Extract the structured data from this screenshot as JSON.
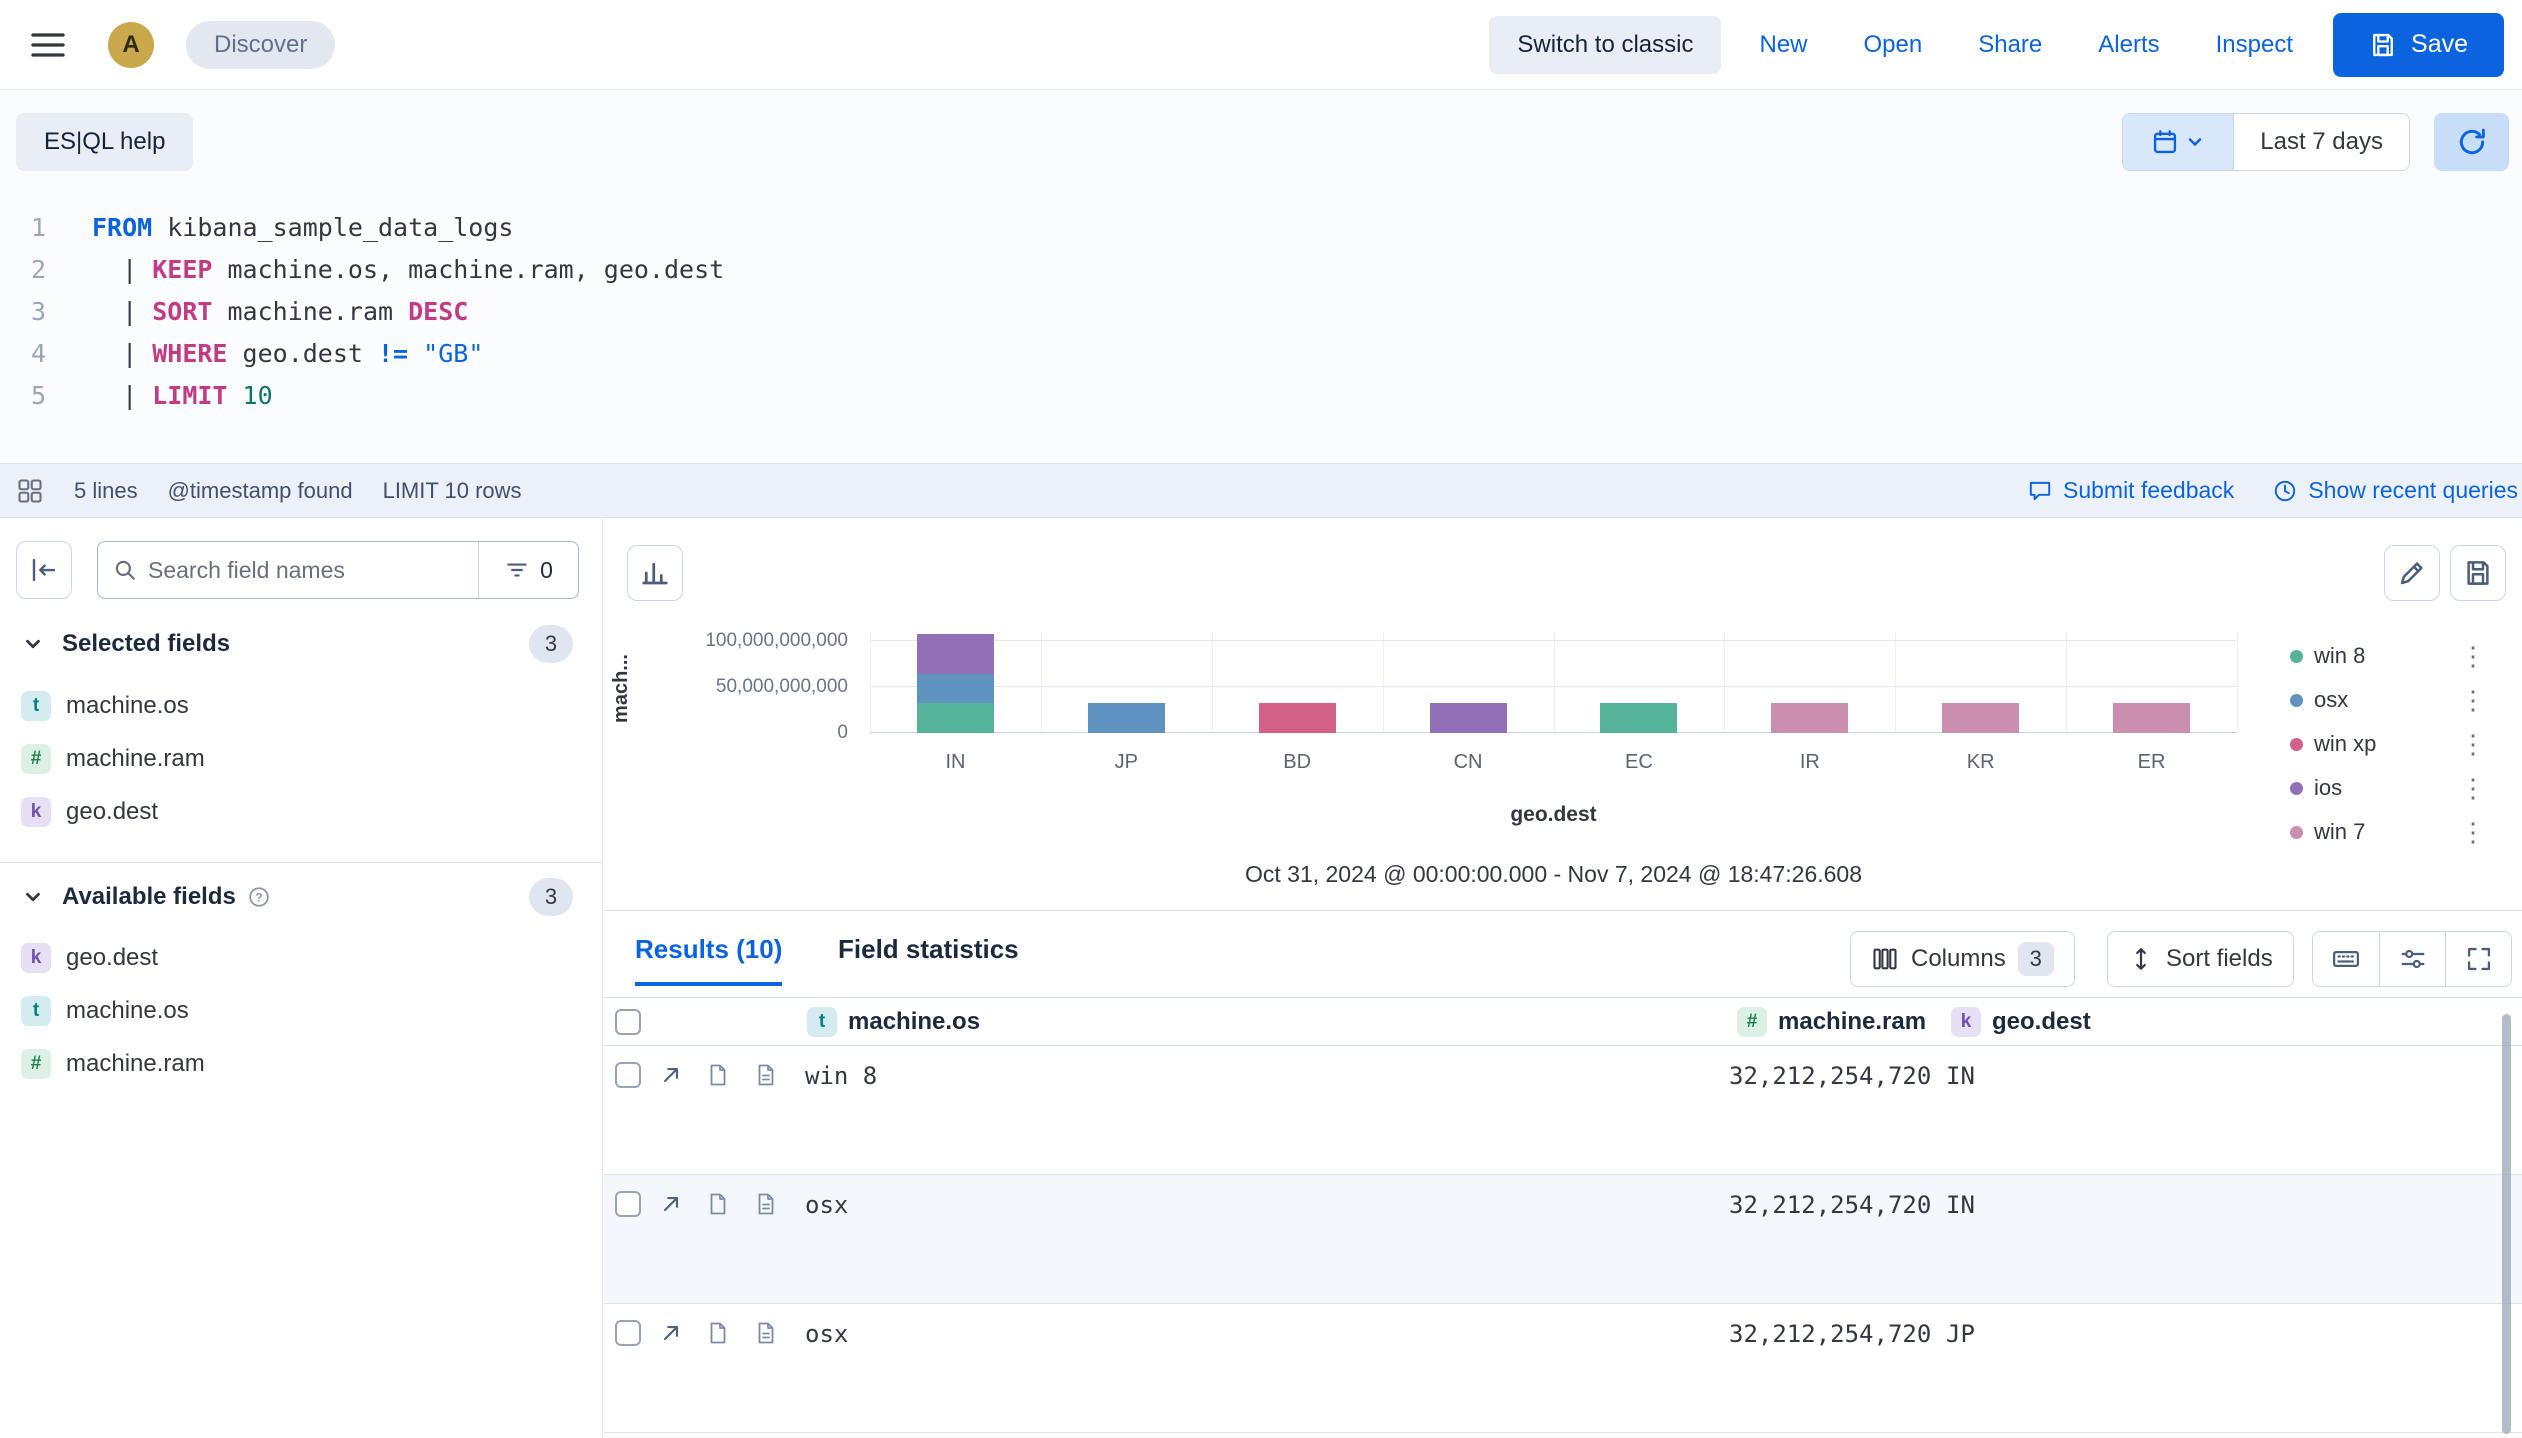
{
  "topbar": {
    "avatar_initial": "A",
    "breadcrumb": "Discover",
    "switch_classic": "Switch to classic",
    "links": [
      "New",
      "Open",
      "Share",
      "Alerts",
      "Inspect"
    ],
    "save_label": "Save"
  },
  "querybar": {
    "help_label": "ES|QL help",
    "time_range": "Last 7 days"
  },
  "editor": {
    "lines": [
      {
        "n": "1",
        "seg": [
          [
            "src",
            "FROM"
          ],
          [
            "plain",
            " kibana_sample_data_logs"
          ]
        ]
      },
      {
        "n": "2",
        "seg": [
          [
            "plain",
            "  | "
          ],
          [
            "proc",
            "KEEP"
          ],
          [
            "plain",
            " machine.os, machine.ram, geo.dest"
          ]
        ]
      },
      {
        "n": "3",
        "seg": [
          [
            "plain",
            "  | "
          ],
          [
            "proc",
            "SORT"
          ],
          [
            "plain",
            " machine.ram "
          ],
          [
            "proc",
            "DESC"
          ]
        ]
      },
      {
        "n": "4",
        "seg": [
          [
            "plain",
            "  | "
          ],
          [
            "proc",
            "WHERE"
          ],
          [
            "plain",
            " geo.dest "
          ],
          [
            "op",
            "!="
          ],
          [
            "plain",
            " "
          ],
          [
            "str",
            "\"GB\""
          ]
        ]
      },
      {
        "n": "5",
        "seg": [
          [
            "plain",
            "  | "
          ],
          [
            "proc",
            "LIMIT"
          ],
          [
            "plain",
            " "
          ],
          [
            "num",
            "10"
          ]
        ]
      }
    ]
  },
  "statusbar": {
    "lines_count": "5 lines",
    "timestamp_note": "@timestamp found",
    "limit_note": "LIMIT 10 rows",
    "feedback_link": "Submit feedback",
    "recent_queries_link": "Show recent queries"
  },
  "sidebar": {
    "search_placeholder": "Search field names",
    "filter_count": "0",
    "selected_fields": {
      "label": "Selected fields",
      "count": "3",
      "items": [
        {
          "type": "t",
          "glyph": "t",
          "name": "machine.os"
        },
        {
          "type": "n",
          "glyph": "#",
          "name": "machine.ram"
        },
        {
          "type": "k",
          "glyph": "k",
          "name": "geo.dest"
        }
      ]
    },
    "available_fields": {
      "label": "Available fields",
      "count": "3",
      "items": [
        {
          "type": "k",
          "glyph": "k",
          "name": "geo.dest"
        },
        {
          "type": "t",
          "glyph": "t",
          "name": "machine.os"
        },
        {
          "type": "n",
          "glyph": "#",
          "name": "machine.ram"
        }
      ]
    }
  },
  "chart_data": {
    "type": "bar",
    "stacked": true,
    "categories": [
      "IN",
      "JP",
      "BD",
      "CN",
      "EC",
      "IR",
      "KR",
      "ER"
    ],
    "series": [
      {
        "name": "win 8",
        "color": "#54B399",
        "values": [
          32212254720,
          0,
          0,
          0,
          32212254720,
          0,
          0,
          0
        ]
      },
      {
        "name": "osx",
        "color": "#6092C0",
        "values": [
          32212254720,
          32212254720,
          0,
          0,
          0,
          0,
          0,
          0
        ]
      },
      {
        "name": "win xp",
        "color": "#D36086",
        "values": [
          0,
          0,
          32212254720,
          0,
          0,
          0,
          0,
          0
        ]
      },
      {
        "name": "ios",
        "color": "#9170B8",
        "values": [
          42949672960,
          0,
          0,
          32212254720,
          0,
          0,
          0,
          0
        ]
      },
      {
        "name": "win 7",
        "color": "#CA8EAE",
        "values": [
          0,
          0,
          0,
          0,
          0,
          32212254720,
          32212254720,
          32212254720
        ]
      }
    ],
    "y_ticks": [
      "0",
      "50,000,000,000",
      "100,000,000,000"
    ],
    "ylim": [
      0,
      110000000000
    ],
    "xlabel": "geo.dest",
    "ylabel_display": "mach...",
    "legend_position": "right",
    "grid": true,
    "time_range_note": "Oct 31, 2024 @ 00:00:00.000 - Nov 7, 2024 @ 18:47:26.608"
  },
  "results": {
    "tabs": {
      "results": "Results (10)",
      "field_statistics": "Field statistics"
    },
    "columns_button": "Columns",
    "columns_count": "3",
    "sort_button": "Sort fields",
    "table": {
      "columns": [
        {
          "type": "t",
          "glyph": "t",
          "name": "machine.os"
        },
        {
          "type": "n",
          "glyph": "#",
          "name": "machine.ram"
        },
        {
          "type": "k",
          "glyph": "k",
          "name": "geo.dest"
        }
      ],
      "rows": [
        {
          "machine_os": "win 8",
          "machine_ram": "32,212,254,720",
          "geo_dest": "IN"
        },
        {
          "machine_os": "osx",
          "machine_ram": "32,212,254,720",
          "geo_dest": "IN"
        },
        {
          "machine_os": "osx",
          "machine_ram": "32,212,254,720",
          "geo_dest": "JP"
        }
      ]
    }
  }
}
